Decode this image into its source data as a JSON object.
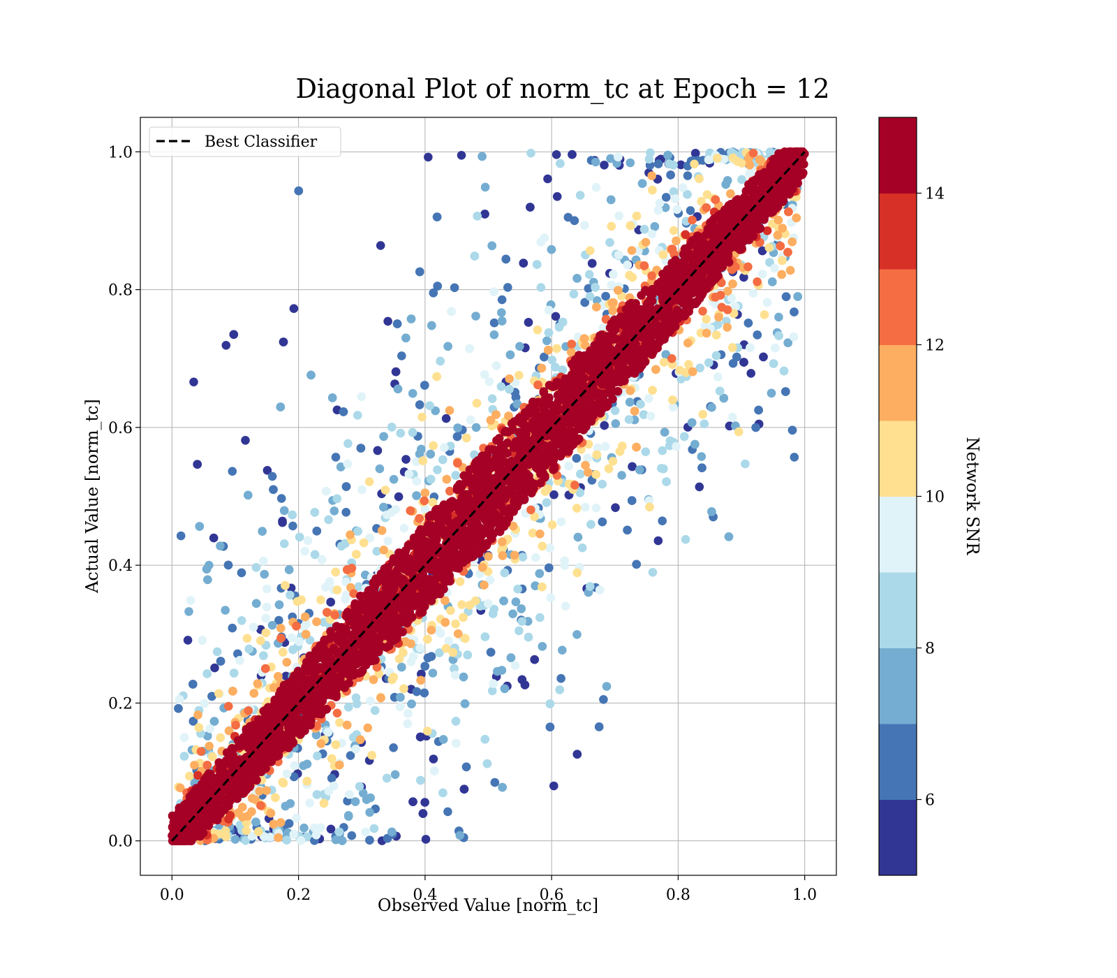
{
  "chart_data": {
    "type": "scatter",
    "title": "Diagonal Plot of norm_tc at Epoch = 12",
    "xlabel": "Observed Value [norm_tc]",
    "ylabel": "Actual Value [norm_tc]",
    "xlim": [
      -0.05,
      1.05
    ],
    "ylim": [
      -0.05,
      1.05
    ],
    "xticks": [
      "0.0",
      "0.2",
      "0.4",
      "0.6",
      "0.8",
      "1.0"
    ],
    "yticks": [
      "0.0",
      "0.2",
      "0.4",
      "0.6",
      "0.8",
      "1.0"
    ],
    "grid": true,
    "legend": {
      "placement": "upper-left",
      "entries": [
        {
          "label": "Best Classifier",
          "style": "dashed",
          "color": "#000000"
        }
      ]
    },
    "reference_line": {
      "name": "Best Classifier",
      "x": [
        0.0,
        1.0
      ],
      "y": [
        0.0,
        1.0
      ]
    },
    "colorbar": {
      "label": "Network SNR",
      "range": [
        5,
        15
      ],
      "ticks": [
        "6",
        "8",
        "10",
        "12",
        "14"
      ],
      "colors": [
        "#313695",
        "#4575b4",
        "#74add1",
        "#abd9e9",
        "#e0f3f8",
        "#fee090",
        "#fdae61",
        "#f46d43",
        "#d73027",
        "#a50026"
      ]
    },
    "density_description_values": {
      "high_snr_band_halfwidth": 0.06,
      "scatter_spread": 0.5
    }
  }
}
